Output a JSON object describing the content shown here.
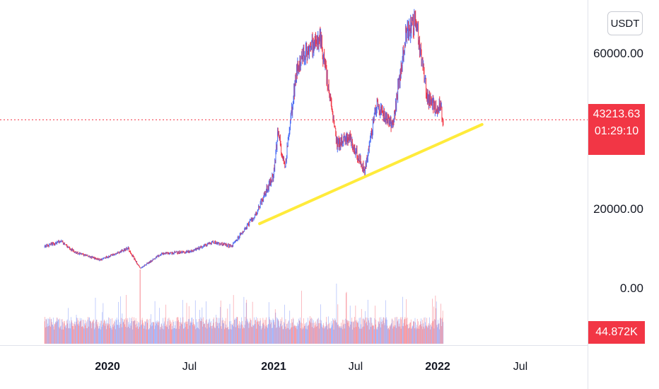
{
  "chart_data": {
    "type": "candlestick",
    "symbol_currency": "USDT",
    "x_axis": {
      "ticks": [
        "2020",
        "Jul",
        "2021",
        "Jul",
        "2022",
        "Jul"
      ],
      "tick_dates": [
        "2020-01-01",
        "2020-07-01",
        "2021-01-01",
        "2021-07-01",
        "2022-01-01",
        "2022-07-01"
      ],
      "year_ticks": [
        "2020",
        "2021",
        "2022"
      ]
    },
    "y_axis": {
      "tick_labels": [
        "60000.00",
        "20000.00",
        "0.00"
      ],
      "ticks": [
        60000,
        20000,
        0
      ]
    },
    "last_price": "43213.63",
    "last_price_value": 43213.63,
    "countdown": "01:29:10",
    "volume_last": "44.872K",
    "price_path": [
      {
        "date": "2019-08-15",
        "price": 10500
      },
      {
        "date": "2019-09-20",
        "price": 12000
      },
      {
        "date": "2019-10-20",
        "price": 9200
      },
      {
        "date": "2019-12-15",
        "price": 7200
      },
      {
        "date": "2020-02-15",
        "price": 10200
      },
      {
        "date": "2020-03-12",
        "price": 5000
      },
      {
        "date": "2020-04-30",
        "price": 8800
      },
      {
        "date": "2020-06-30",
        "price": 9300
      },
      {
        "date": "2020-08-20",
        "price": 11800
      },
      {
        "date": "2020-09-30",
        "price": 10700
      },
      {
        "date": "2020-11-20",
        "price": 18500
      },
      {
        "date": "2020-12-31",
        "price": 29000
      },
      {
        "date": "2021-01-10",
        "price": 40000
      },
      {
        "date": "2021-01-25",
        "price": 31000
      },
      {
        "date": "2021-02-20",
        "price": 56000
      },
      {
        "date": "2021-03-13",
        "price": 61000
      },
      {
        "date": "2021-04-14",
        "price": 64000
      },
      {
        "date": "2021-05-20",
        "price": 37000
      },
      {
        "date": "2021-06-15",
        "price": 39000
      },
      {
        "date": "2021-07-20",
        "price": 30000
      },
      {
        "date": "2021-08-15",
        "price": 47000
      },
      {
        "date": "2021-09-20",
        "price": 42000
      },
      {
        "date": "2021-10-20",
        "price": 66000
      },
      {
        "date": "2021-11-10",
        "price": 68500
      },
      {
        "date": "2021-12-05",
        "price": 49000
      },
      {
        "date": "2021-12-20",
        "price": 46500
      },
      {
        "date": "2022-01-02",
        "price": 47000
      },
      {
        "date": "2022-01-09",
        "price": 43213.63
      }
    ],
    "volume_range": [
      0,
      100
    ],
    "trendline": {
      "color": "#ffeb3b",
      "start": {
        "date": "2020-12-01",
        "price": 16500
      },
      "end": {
        "date": "2022-04-05",
        "price": 42000
      }
    },
    "colors": {
      "up": "#4c6ef5",
      "down": "#f23645",
      "trendline": "#ffeb3b",
      "last_price_line": "#f23645"
    }
  }
}
